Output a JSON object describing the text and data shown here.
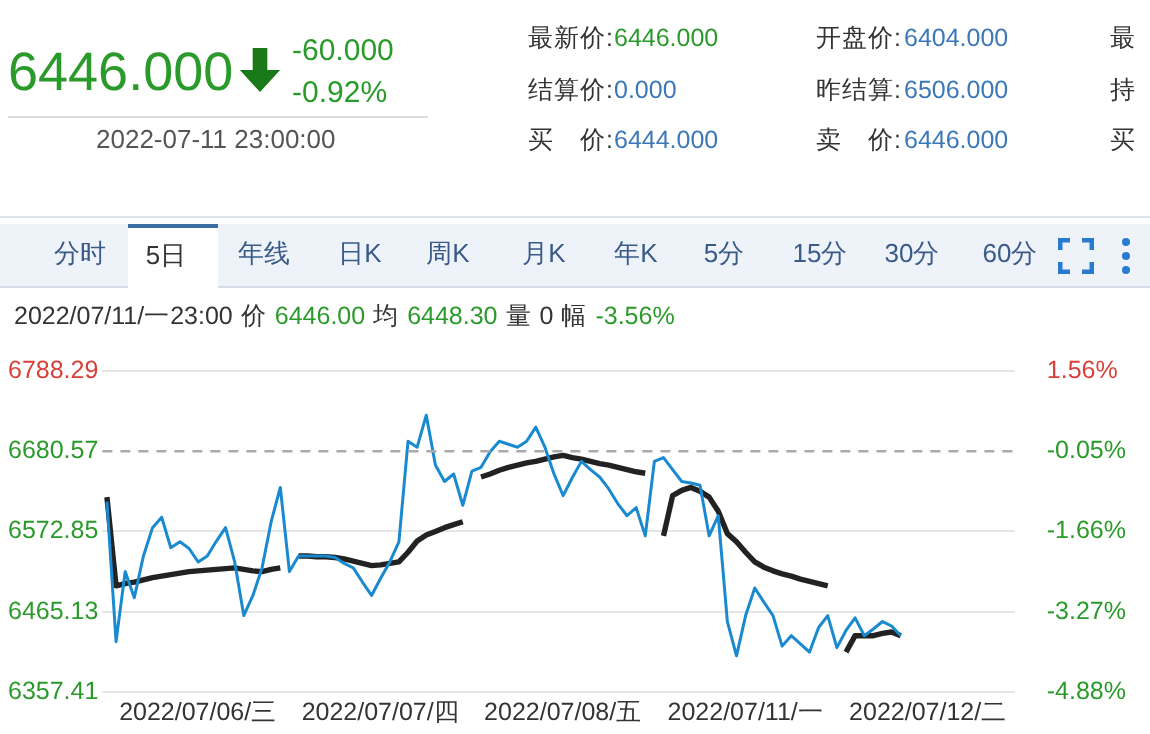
{
  "chart_data": {
    "type": "line",
    "grid": true,
    "legend": false,
    "marker": "none",
    "line_style": "solid",
    "categories": [
      null,
      null,
      null,
      null,
      null,
      null,
      null,
      null,
      null,
      null,
      "2022/07/06/三",
      null,
      null,
      null,
      null,
      null,
      null,
      null,
      null,
      null,
      null,
      null,
      null,
      null,
      null,
      null,
      null,
      null,
      null,
      null,
      "2022/07/07/四",
      null,
      null,
      null,
      null,
      null,
      null,
      null,
      null,
      null,
      null,
      null,
      null,
      null,
      null,
      null,
      null,
      null,
      null,
      null,
      "2022/07/08/五",
      null,
      null,
      null,
      null,
      null,
      null,
      null,
      null,
      null,
      null,
      null,
      null,
      null,
      null,
      null,
      null,
      null,
      null,
      null,
      "2022/07/11/一",
      null,
      null,
      null,
      null,
      null,
      null,
      null,
      null,
      null,
      null,
      null,
      null,
      null,
      null,
      null,
      null,
      null,
      null,
      null,
      "2022/07/12/二",
      null,
      null,
      null,
      null,
      null,
      null,
      null,
      null,
      null
    ],
    "ylim": [
      6357.41,
      6788.29
    ],
    "yticks": [
      6357.41,
      6465.13,
      6572.85,
      6680.57,
      6788.29
    ],
    "y2lim": [
      -4.88,
      1.56
    ],
    "y2ticks": [
      {
        "value": -4.88,
        "label": "-4.88%"
      },
      {
        "value": -3.27,
        "label": "-3.27%"
      },
      {
        "value": -1.66,
        "label": "-1.66%"
      },
      {
        "value": -0.05,
        "label": "-0.05%"
      },
      {
        "value": 1.56,
        "label": "1.56%"
      }
    ],
    "ref_lines": [
      {
        "axis": "y",
        "value": 6680.57,
        "label": null,
        "color": "#aaaaaa",
        "line_style": "dashed"
      }
    ],
    "series": [
      {
        "color": "#1a8ad0",
        "values": [
          6613,
          6425,
          6519,
          6484,
          6540,
          6578,
          6592,
          6551,
          6559,
          6550,
          6532,
          6540,
          6560,
          6578,
          6532,
          6460,
          6487,
          6524,
          6586,
          6632,
          6519,
          6540,
          6540,
          6540,
          6540,
          6538,
          6530,
          6524,
          6505,
          6487,
          6510,
          6532,
          6559,
          6694,
          6686,
          6729,
          6662,
          6640,
          6650,
          6608,
          6654,
          6659,
          6680,
          6694,
          6690,
          6686,
          6694,
          6713,
          6686,
          6650,
          6621,
          6645,
          6667,
          6656,
          6646,
          6630,
          6610,
          6594,
          6605,
          6567,
          6667,
          6672,
          6656,
          6640,
          6638,
          6635,
          6567,
          6594,
          6452,
          6406,
          6460,
          6497,
          6478,
          6460,
          6419,
          6433,
          6422,
          6411,
          6444,
          6460,
          6417,
          6440,
          6457,
          6433,
          6442,
          6452,
          6446,
          6433,
          null,
          null,
          null,
          null,
          null,
          null,
          null,
          null,
          null,
          null,
          null,
          null
        ]
      },
      {
        "color": "#222222",
        "values": [
          6619,
          6500,
          6503,
          6505,
          6508,
          6511,
          6513,
          6515,
          6517,
          6519,
          6520,
          6521,
          6522,
          6523,
          6524,
          6522,
          6520,
          6519,
          6522,
          6524,
          null,
          6540,
          6540,
          6539,
          6539,
          6538,
          6536,
          6533,
          6530,
          6527,
          6528,
          6530,
          6532,
          6545,
          6560,
          6568,
          6573,
          6578,
          6582,
          6586,
          null,
          6646,
          6650,
          6655,
          6659,
          6662,
          6665,
          6667,
          6670,
          6673,
          6675,
          6672,
          6670,
          6667,
          6664,
          6662,
          6659,
          6656,
          6653,
          6651,
          null,
          6567,
          6621,
          6628,
          6632,
          6627,
          6619,
          6600,
          6570,
          6559,
          6545,
          6532,
          6525,
          6520,
          6516,
          6513,
          6509,
          6506,
          6503,
          6500,
          null,
          6411,
          6433,
          6433,
          6433,
          6436,
          6438,
          6433,
          null,
          null,
          null,
          null,
          null,
          null,
          null,
          null,
          null,
          null,
          null,
          null
        ]
      }
    ],
    "annotations": [
      "6446.000",
      "-60.000",
      "-0.92%",
      "2022-07-11 23:00:00",
      "最新价:",
      "6446.000",
      "开盘价:",
      "6404.000",
      "最",
      "结算价:",
      "0.000",
      "昨结算:",
      "6506.000",
      "持",
      "买　价:",
      "6444.000",
      "卖　价:",
      "6446.000",
      "买",
      "分时",
      "5日",
      "年线",
      "日K",
      "周K",
      "月K",
      "年K",
      "5分",
      "15分",
      "30分",
      "60分",
      "2022/07/11/一23:00",
      "价",
      "6446.00",
      "均",
      "6448.30",
      "量",
      "0",
      "幅",
      "-3.56%"
    ]
  }
}
